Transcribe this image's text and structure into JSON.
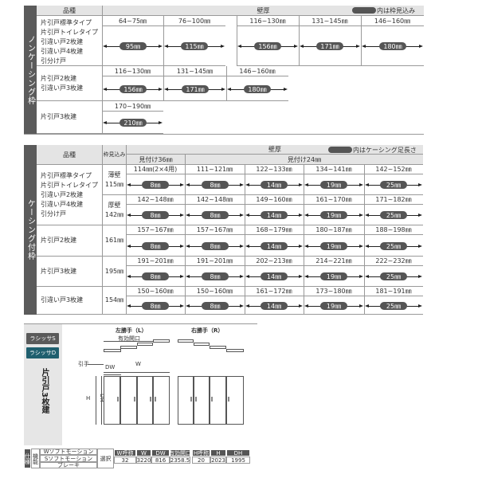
{
  "noncasing": {
    "side_label": "ノンケーシング枠",
    "header": {
      "kind": "品種",
      "wall": "壁厚",
      "legend": "内は枠見込み"
    },
    "rows": [
      {
        "types": [
          "片引戸標準タイプ",
          "片引戸トイレタイプ",
          "引違い戸2枚建",
          "引違い戸4枚建",
          "引分け戸"
        ],
        "cells": [
          {
            "range": "64~75㎜",
            "value": "95㎜"
          },
          {
            "range": "76~100㎜",
            "value": "115㎜"
          },
          {
            "range": "116~130㎜",
            "value": "156㎜"
          },
          {
            "range": "131~145㎜",
            "value": "171㎜"
          },
          {
            "range": "146~160㎜",
            "value": "180㎜"
          }
        ]
      },
      {
        "types": [
          "片引戸2枚建",
          "引違い戸3枚建"
        ],
        "cells": [
          {
            "range": "116~130㎜",
            "value": "156㎜"
          },
          {
            "range": "131~145㎜",
            "value": "171㎜"
          },
          {
            "range": "146~160㎜",
            "value": "180㎜"
          }
        ]
      },
      {
        "types": [
          "片引戸3枚建"
        ],
        "cells": [
          {
            "range": "170~190㎜",
            "value": "210㎜"
          }
        ]
      }
    ]
  },
  "casing": {
    "side_label": "ケーシング付枠",
    "header": {
      "kind": "品種",
      "frame": "枠見込み",
      "wall": "壁厚",
      "mitsuke36": "見付け36㎜",
      "mitsuke24": "見付け24㎜",
      "legend": "内はケーシング足長さ"
    },
    "values": [
      "8㎜",
      "8㎜",
      "14㎜",
      "19㎜",
      "25㎜"
    ],
    "groups": [
      {
        "types": [
          "片引戸標準タイプ",
          "片引戸トイレタイプ",
          "引違い戸2枚建",
          "引違い戸4枚建",
          "引分け戸"
        ],
        "rows": [
          {
            "frame_top": "薄壁",
            "frame": "115㎜",
            "ranges": [
              "114㎜(2×4用)",
              "111~121㎜",
              "122~133㎜",
              "134~141㎜",
              "142~152㎜"
            ]
          },
          {
            "frame_top": "厚壁",
            "frame": "142㎜",
            "ranges": [
              "142~148㎜",
              "142~148㎜",
              "149~160㎜",
              "161~170㎜",
              "171~182㎜"
            ]
          }
        ]
      },
      {
        "types": [
          "片引戸2枚建"
        ],
        "rows": [
          {
            "frame": "161㎜",
            "ranges": [
              "157~167㎜",
              "157~167㎜",
              "168~179㎜",
              "180~187㎜",
              "188~198㎜"
            ]
          }
        ]
      },
      {
        "types": [
          "片引戸3枚建"
        ],
        "rows": [
          {
            "frame": "195㎜",
            "ranges": [
              "191~201㎜",
              "191~201㎜",
              "202~213㎜",
              "214~221㎜",
              "222~232㎜"
            ]
          }
        ]
      },
      {
        "types": [
          "引違い戸3枚建"
        ],
        "rows": [
          {
            "frame": "154㎜",
            "ranges": [
              "150~160㎜",
              "150~160㎜",
              "161~172㎜",
              "173~180㎜",
              "181~191㎜"
            ]
          }
        ]
      }
    ]
  },
  "product": {
    "series": [
      {
        "label": "ラシッサS",
        "color": "#5a5a5a"
      },
      {
        "label": "ラシッサD",
        "color": "#1f5f6e"
      }
    ],
    "title": "片引戸3枚建",
    "left_label": "左勝手（L）",
    "right_label": "右勝手（R）",
    "opening_label": "有効開口",
    "handle_label": "引手",
    "dw_label": "DW",
    "w_label": "W",
    "h_label": "H",
    "dh_label": "DH"
  },
  "spec": {
    "label": "仕様",
    "function_label": "機能",
    "options": [
      "Wソフトモーション",
      "Sソフトモーション",
      "ブレーキ"
    ],
    "select_label": "選択",
    "headers1": [
      "W呼称",
      "W",
      "DW",
      "有効開口"
    ],
    "values1": [
      "32",
      "3220",
      "816",
      "2358.5"
    ],
    "headers2": [
      "H呼称",
      "H",
      "DH"
    ],
    "values2": [
      "20",
      "2023",
      "1995"
    ]
  }
}
